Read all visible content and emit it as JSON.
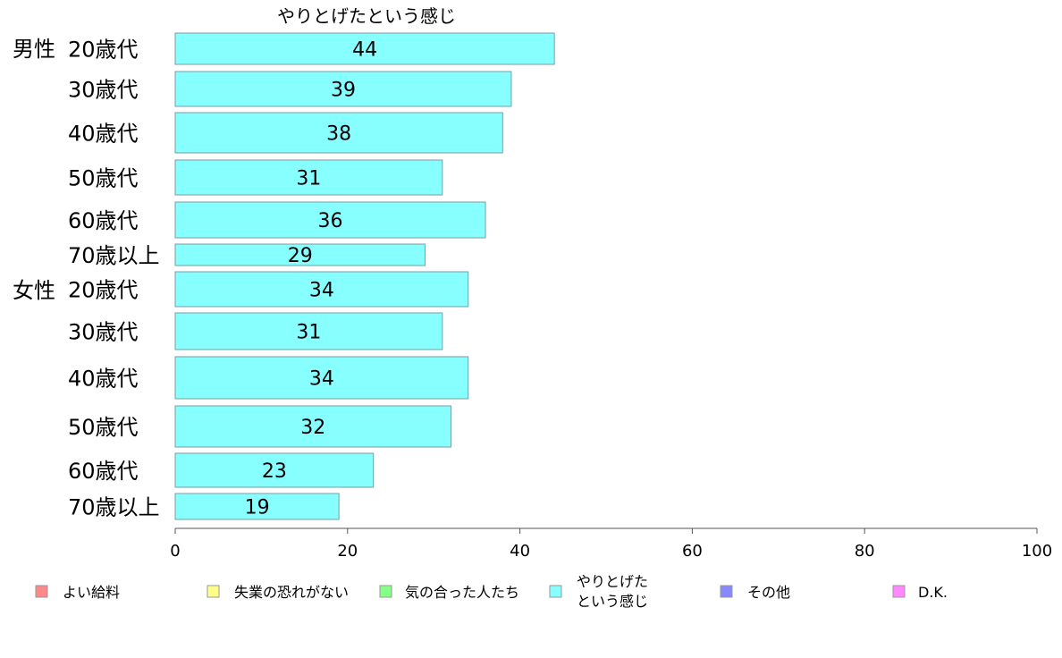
{
  "chart_data": {
    "type": "bar",
    "orientation": "horizontal",
    "title": "やりとげたという感じ",
    "groups": [
      {
        "label": "男性",
        "categories": [
          "20歳代",
          "30歳代",
          "40歳代",
          "50歳代",
          "60歳代",
          "70歳以上"
        ]
      },
      {
        "label": "女性",
        "categories": [
          "20歳代",
          "30歳代",
          "40歳代",
          "50歳代",
          "60歳代",
          "70歳以上"
        ]
      }
    ],
    "series": [
      {
        "name": "やりとげたという感じ",
        "color": "#88ffff",
        "values": [
          44,
          39,
          38,
          31,
          36,
          29,
          34,
          31,
          34,
          32,
          23,
          19
        ],
        "labels": [
          "44",
          "39",
          "38",
          "31",
          "36",
          "29",
          "34",
          "31",
          "34",
          "32",
          "23",
          "19"
        ]
      }
    ],
    "xlim": [
      0,
      100
    ],
    "xticks": [
      "0",
      "20",
      "40",
      "60",
      "80",
      "100"
    ],
    "grid": false,
    "legend_position": "bottom",
    "legend": [
      {
        "label": "よい給料",
        "color": "#ff8888"
      },
      {
        "label": "失業の恐れがない",
        "color": "#ffff88"
      },
      {
        "label": "気の合った人たち",
        "color": "#88ff88"
      },
      {
        "label": "やりとげた\nという感じ",
        "color": "#88ffff"
      },
      {
        "label": "その他",
        "color": "#8888ff"
      },
      {
        "label": "D.K.",
        "color": "#ff88ff"
      }
    ]
  }
}
